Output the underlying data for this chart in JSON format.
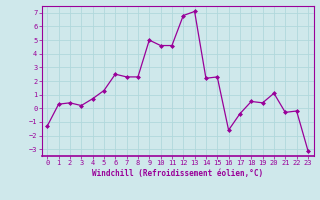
{
  "x": [
    0,
    1,
    2,
    3,
    4,
    5,
    6,
    7,
    8,
    9,
    10,
    11,
    12,
    13,
    14,
    15,
    16,
    17,
    18,
    19,
    20,
    21,
    22,
    23
  ],
  "y": [
    -1.3,
    0.3,
    0.4,
    0.2,
    0.7,
    1.3,
    2.5,
    2.3,
    2.3,
    5.0,
    4.6,
    4.6,
    6.8,
    7.1,
    2.2,
    2.3,
    -1.6,
    -0.4,
    0.5,
    0.4,
    1.1,
    -0.3,
    -0.2,
    -3.1
  ],
  "line_color": "#990099",
  "marker": "D",
  "marker_size": 2.0,
  "xlabel": "Windchill (Refroidissement éolien,°C)",
  "xlim": [
    -0.5,
    23.5
  ],
  "ylim": [
    -3.5,
    7.5
  ],
  "xticks": [
    0,
    1,
    2,
    3,
    4,
    5,
    6,
    7,
    8,
    9,
    10,
    11,
    12,
    13,
    14,
    15,
    16,
    17,
    18,
    19,
    20,
    21,
    22,
    23
  ],
  "yticks": [
    -3,
    -2,
    -1,
    0,
    1,
    2,
    3,
    4,
    5,
    6,
    7
  ],
  "bg_color": "#cfe8eb",
  "grid_color": "#b0d8dc",
  "spine_color": "#990099",
  "tick_color": "#990099",
  "label_color": "#990099",
  "tick_fontsize": 5.0,
  "xlabel_fontsize": 5.5,
  "linewidth": 0.9
}
